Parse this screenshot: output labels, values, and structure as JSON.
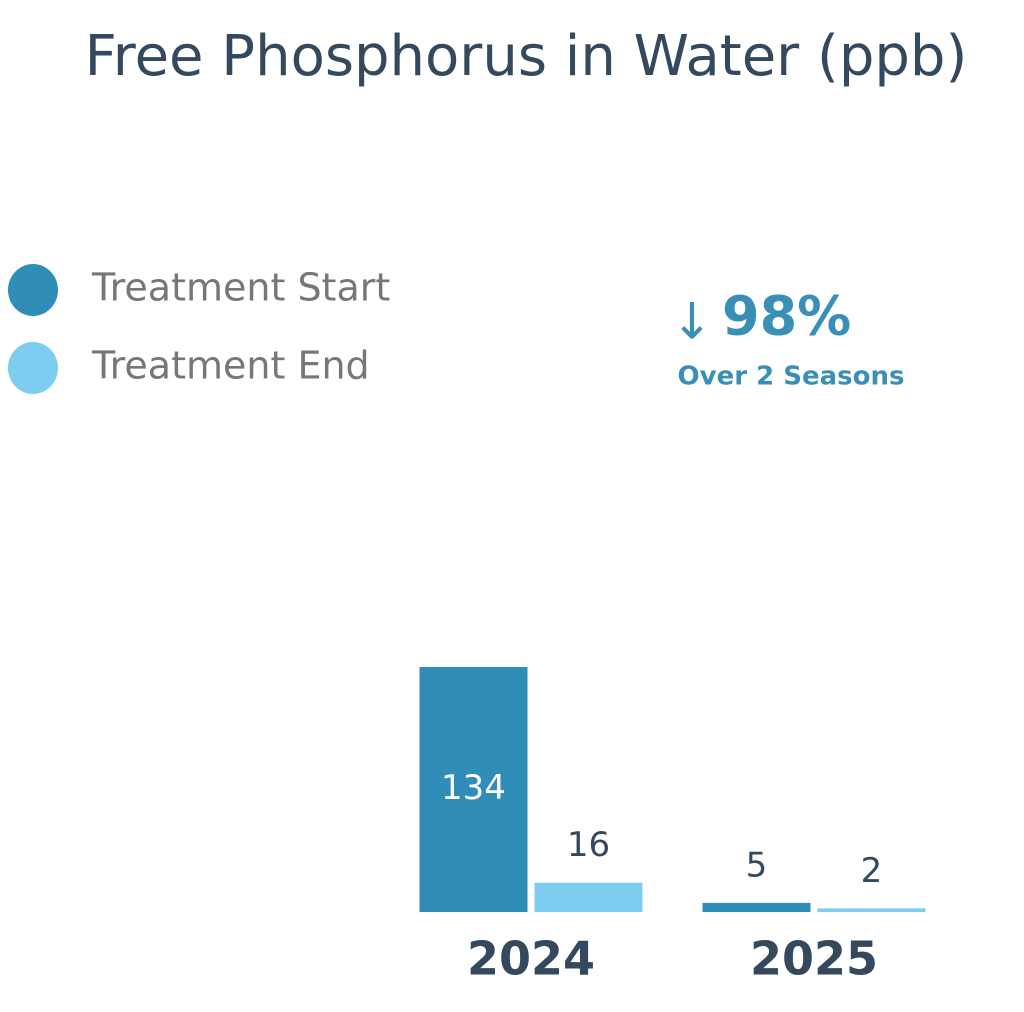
{
  "chart_data": {
    "type": "bar",
    "title": "Free Phosphorus in Water (ppb)",
    "categories": [
      "2024",
      "2025"
    ],
    "series": [
      {
        "name": "Treatment Start",
        "color": "#2f8db8",
        "values": [
          134,
          5
        ]
      },
      {
        "name": "Treatment End",
        "color": "#7ccdf0",
        "values": [
          16,
          2
        ]
      }
    ],
    "annotation": {
      "arrow": "↓",
      "text": "98%",
      "subtext": "Over 2 Seasons"
    }
  }
}
